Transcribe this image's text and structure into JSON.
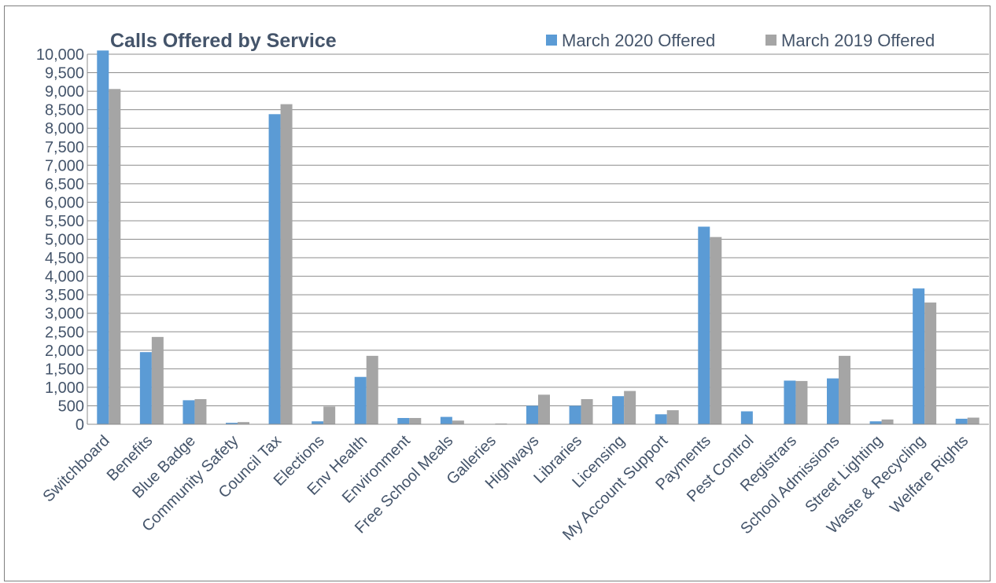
{
  "chart_data": {
    "type": "bar",
    "title": "Calls Offered by Service",
    "xlabel": "",
    "ylabel": "",
    "ylim": [
      0,
      10000
    ],
    "yticks": [
      "0",
      "500",
      "1,000",
      "1,500",
      "2,000",
      "2,500",
      "3,000",
      "3,500",
      "4,000",
      "4,500",
      "5,000",
      "5,500",
      "6,000",
      "6,500",
      "7,000",
      "7,500",
      "8,000",
      "8,500",
      "9,000",
      "9,500",
      "10,000"
    ],
    "grid": true,
    "legend_position": "top-right",
    "categories": [
      "Switchboard",
      "Benefits",
      "Blue Badge",
      "Community Safety",
      "Council Tax",
      "Elections",
      "Env Health",
      "Environment",
      "Free School Meals",
      "Galleries",
      "Highways",
      "Libraries",
      "Licensing",
      "My Account Support",
      "Payments",
      "Pest Control",
      "Registrars",
      "School Admissions",
      "Street Lighting",
      "Waste & Recycling",
      "Welfare Rights"
    ],
    "series": [
      {
        "name": "March 2020 Offered",
        "color": "#5b9bd5",
        "values": [
          10100,
          1950,
          650,
          40,
          8380,
          80,
          1280,
          170,
          200,
          10,
          500,
          500,
          760,
          270,
          5340,
          350,
          1180,
          1240,
          80,
          3670,
          150
        ]
      },
      {
        "name": "March 2019 Offered",
        "color": "#a5a5a5",
        "values": [
          9060,
          2360,
          680,
          60,
          8650,
          480,
          1850,
          170,
          100,
          20,
          800,
          680,
          900,
          380,
          5060,
          0,
          1170,
          1850,
          130,
          3290,
          180
        ]
      }
    ]
  }
}
